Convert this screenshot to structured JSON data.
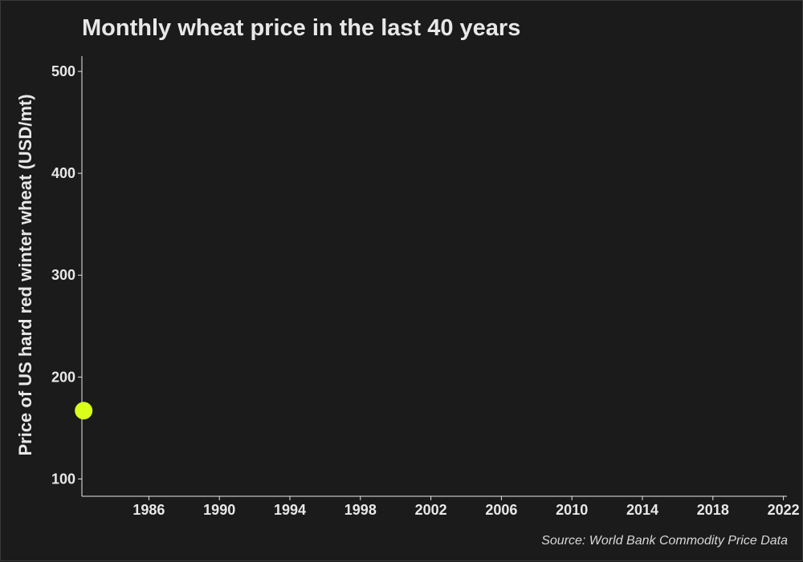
{
  "chart_data": {
    "type": "scatter",
    "title": "Monthly wheat price in the last 40 years",
    "xlabel": "",
    "ylabel": "Price of US  hard red winter wheat (USD/mt)",
    "caption": "Source: World Bank Commodity Price Data",
    "x_ticks": [
      1986,
      1990,
      1994,
      1998,
      2002,
      2006,
      2010,
      2014,
      2018,
      2022
    ],
    "y_ticks": [
      100,
      200,
      300,
      400,
      500
    ],
    "xlim": [
      1982.2,
      2022.2
    ],
    "ylim": [
      83,
      515
    ],
    "grid": false,
    "series": [
      {
        "color": "#d9ff1a",
        "points": [
          {
            "x": 1982.3,
            "y": 167
          }
        ]
      }
    ]
  },
  "colors": {
    "background": "#1b1b1b",
    "text": "#e8e8e8",
    "point": "#d9ff1a"
  }
}
